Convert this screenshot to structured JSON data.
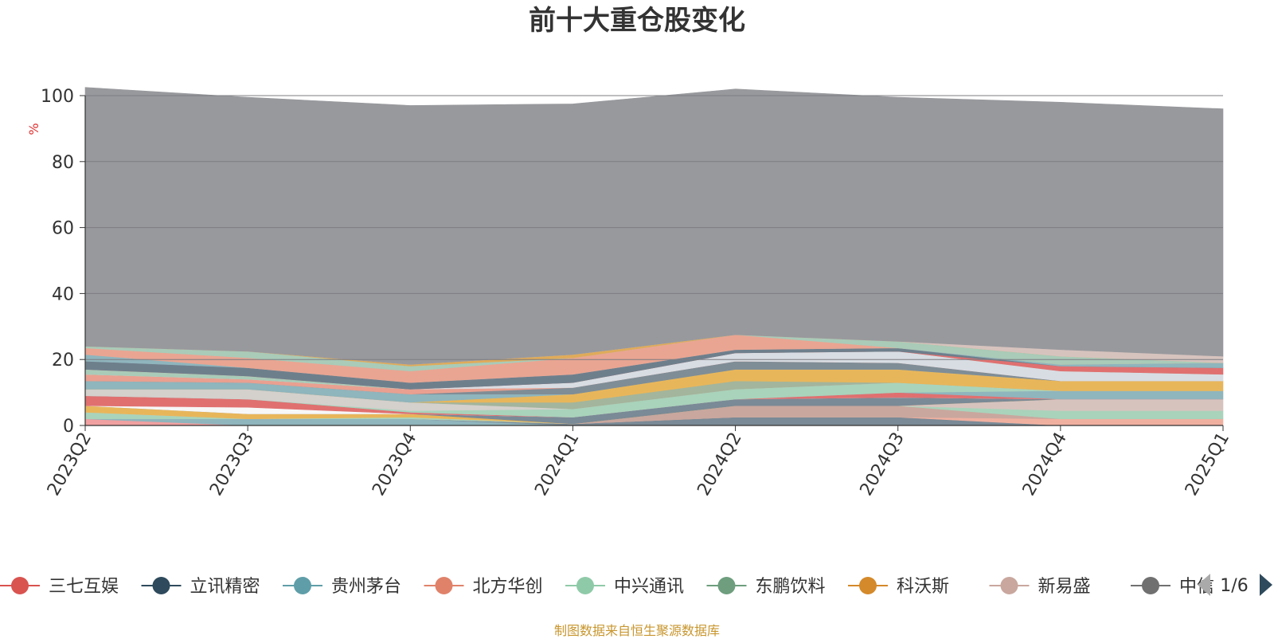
{
  "chart_data": {
    "type": "area",
    "stacked": true,
    "title": "前十大重仓股变化",
    "ylabel": "%",
    "ylim": [
      0,
      100
    ],
    "yticks": [
      0,
      20,
      40,
      60,
      80,
      100
    ],
    "categories": [
      "2023Q2",
      "2023Q3",
      "2023Q4",
      "2024Q1",
      "2024Q2",
      "2024Q3",
      "2024Q4",
      "2025Q1"
    ],
    "grid": true,
    "legend_position": "bottom",
    "series": [
      {
        "name": "三七互娱",
        "color": "#d9534f"
      },
      {
        "name": "立讯精密",
        "color": "#2e4a5c"
      },
      {
        "name": "贵州茅台",
        "color": "#5f9ea8"
      },
      {
        "name": "北方华创",
        "color": "#e0826a"
      },
      {
        "name": "中兴通讯",
        "color": "#8fcaa8"
      },
      {
        "name": "东鹏饮料",
        "color": "#6e9e7e"
      },
      {
        "name": "科沃斯",
        "color": "#d4892a"
      },
      {
        "name": "新易盛",
        "color": "#c9a79e"
      },
      {
        "name": "中信",
        "color": "#707070"
      }
    ],
    "bands": [
      {
        "color": "#f0a0a0",
        "values": [
          2,
          0,
          0,
          0,
          0,
          0,
          0,
          0
        ]
      },
      {
        "color": "#8fb5bd",
        "values": [
          0,
          2,
          2,
          0,
          0,
          0,
          0,
          0
        ]
      },
      {
        "color": "#7a8a96",
        "values": [
          0,
          0,
          0,
          0.5,
          2.5,
          2.5,
          0,
          0
        ]
      },
      {
        "color": "#f0b0a0",
        "values": [
          0,
          0,
          0,
          0,
          0,
          0,
          2,
          2
        ]
      },
      {
        "color": "#c9a79e",
        "values": [
          0,
          0,
          0,
          0,
          3.5,
          3.5,
          0,
          0
        ]
      },
      {
        "color": "#a9d3bb",
        "values": [
          2,
          0,
          0.5,
          0,
          0,
          0,
          2.5,
          2.5
        ]
      },
      {
        "color": "#d7c3be",
        "values": [
          0,
          0,
          0,
          0,
          0,
          0,
          3.5,
          3.5
        ]
      },
      {
        "color": "#e8b65a",
        "values": [
          2,
          1.5,
          1,
          0,
          0,
          0,
          0,
          0
        ]
      },
      {
        "color": "#7a8a96",
        "values": [
          0,
          0,
          0,
          2,
          2,
          2.5,
          0,
          0
        ]
      },
      {
        "color": "#f7f7f7",
        "values": [
          0,
          2,
          0,
          0,
          0,
          0,
          0,
          0
        ]
      },
      {
        "color": "#e07070",
        "values": [
          3,
          2.5,
          0.5,
          0,
          0,
          1.5,
          0,
          0
        ]
      },
      {
        "color": "#8fb5bd",
        "values": [
          0,
          0,
          0,
          0,
          0,
          0,
          2.5,
          2.5
        ]
      },
      {
        "color": "#a9d3bb",
        "values": [
          0,
          0,
          0.5,
          2.5,
          3,
          3,
          0,
          0
        ]
      },
      {
        "color": "#d4d0cc",
        "values": [
          2,
          3,
          2.5,
          0,
          0,
          0,
          0,
          0
        ]
      },
      {
        "color": "#a3b59c",
        "values": [
          0,
          0,
          0,
          2,
          2.5,
          0,
          0,
          0
        ]
      },
      {
        "color": "#e8b65a",
        "values": [
          0,
          0,
          0,
          2.5,
          3.5,
          4,
          3,
          3
        ]
      },
      {
        "color": "#8fb5bd",
        "values": [
          2.5,
          2,
          2.5,
          0,
          0,
          0,
          0,
          0
        ]
      },
      {
        "color": "#7f8d96",
        "values": [
          0,
          0,
          0,
          2,
          2.5,
          2,
          0,
          0
        ]
      },
      {
        "color": "#e9a090",
        "values": [
          2,
          1,
          1.5,
          0,
          0,
          0,
          0,
          0
        ]
      },
      {
        "color": "#d8dde3",
        "values": [
          0,
          0,
          0,
          1.5,
          2.5,
          3.5,
          3,
          2
        ]
      },
      {
        "color": "#a9cbb8",
        "values": [
          1.5,
          1,
          0,
          0,
          0,
          0,
          0,
          0
        ]
      },
      {
        "color": "#e07070",
        "values": [
          0,
          0,
          0,
          0,
          0,
          0,
          1.5,
          2
        ]
      },
      {
        "color": "#6e7f8c",
        "values": [
          2.5,
          2.5,
          2,
          2.5,
          1,
          1,
          0,
          0
        ]
      },
      {
        "color": "#8fb5bd",
        "values": [
          2,
          0,
          0,
          0,
          0,
          0,
          0.5,
          1.5
        ]
      },
      {
        "color": "#e9a592",
        "values": [
          2,
          3,
          3.5,
          5,
          4.5,
          0,
          0,
          0
        ]
      },
      {
        "color": "#a9cbb8",
        "values": [
          0.5,
          2,
          1.5,
          0,
          0,
          2,
          2.5,
          0
        ]
      },
      {
        "color": "#dfab5a",
        "values": [
          0,
          0,
          0.5,
          1,
          0,
          0,
          0,
          0
        ]
      },
      {
        "color": "#d7c3be",
        "values": [
          0,
          0,
          0,
          0,
          0,
          0,
          2,
          2
        ]
      },
      {
        "color": "#98999d",
        "values": [
          78.5,
          77,
          78.5,
          76,
          74.5,
          74,
          75,
          75
        ]
      }
    ],
    "legend_page": "1/6"
  },
  "source_note": "制图数据来自恒生聚源数据库"
}
